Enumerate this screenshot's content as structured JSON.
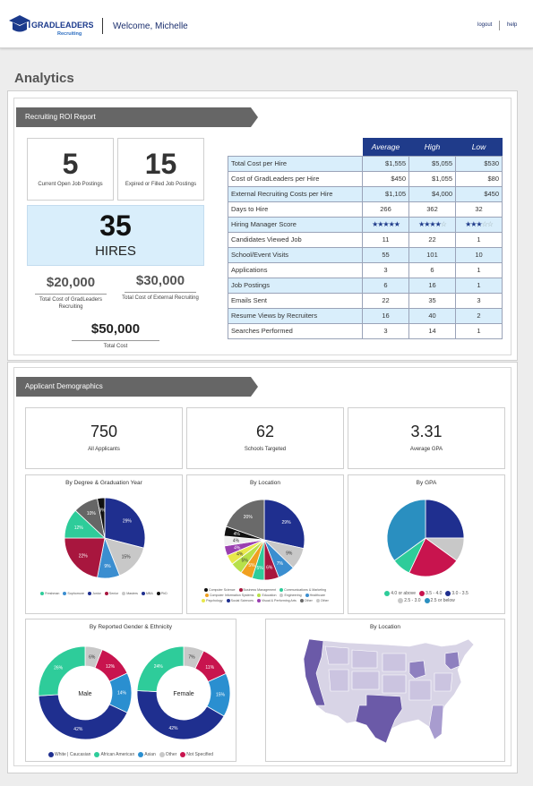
{
  "header": {
    "logo_text": "GRADLEADERS",
    "logo_sub": "Recruiting",
    "welcome": "Welcome, Michelle",
    "logout": "logout",
    "help": "help"
  },
  "page_title": "Analytics",
  "roi": {
    "section_title": "Recruiting ROI Report",
    "open_postings": {
      "value": "5",
      "label": "Current Open Job Postings"
    },
    "filled_postings": {
      "value": "15",
      "label": "Expired or Filled Job Postings"
    },
    "hires": {
      "value": "35",
      "label": "HIRES"
    },
    "gl_cost": {
      "value": "$20,000",
      "label": "Total Cost of GradLeaders Recruiting"
    },
    "ext_cost": {
      "value": "$30,000",
      "label": "Total Cost of External Recruiting"
    },
    "total_cost": {
      "value": "$50,000",
      "label": "Total Cost"
    },
    "table": {
      "headers": [
        "Average",
        "High",
        "Low"
      ],
      "rows": [
        {
          "label": "Total Cost per Hire",
          "values": [
            "$1,555",
            "$5,055",
            "$530"
          ],
          "style": "blue",
          "align": "r"
        },
        {
          "label": "Cost of GradLeaders per Hire",
          "values": [
            "$450",
            "$1,055",
            "$80"
          ],
          "style": "white",
          "align": "r"
        },
        {
          "label": "External Recruiting Costs per Hire",
          "values": [
            "$1,105",
            "$4,000",
            "$450"
          ],
          "style": "blue",
          "align": "r"
        },
        {
          "label": "Days to Hire",
          "values": [
            "266",
            "362",
            "32"
          ],
          "style": "white",
          "align": "c"
        },
        {
          "label": "Hiring Manager Score",
          "stars": [
            5,
            4,
            3
          ],
          "style": "blue"
        },
        {
          "label": "Candidates Viewed Job",
          "values": [
            "11",
            "22",
            "1"
          ],
          "style": "white",
          "align": "c"
        },
        {
          "label": "School/Event Visits",
          "values": [
            "55",
            "101",
            "10"
          ],
          "style": "blue",
          "align": "c"
        },
        {
          "label": "Applications",
          "values": [
            "3",
            "6",
            "1"
          ],
          "style": "white",
          "align": "c"
        },
        {
          "label": "Job Postings",
          "values": [
            "6",
            "16",
            "1"
          ],
          "style": "blue",
          "align": "c"
        },
        {
          "label": "Emails Sent",
          "values": [
            "22",
            "35",
            "3"
          ],
          "style": "white",
          "align": "c"
        },
        {
          "label": "Resume Views by Recruiters",
          "values": [
            "16",
            "40",
            "2"
          ],
          "style": "blue",
          "align": "c"
        },
        {
          "label": "Searches Performed",
          "values": [
            "3",
            "14",
            "1"
          ],
          "style": "white",
          "align": "c"
        }
      ]
    }
  },
  "demo": {
    "section_title": "Applicant Demographics",
    "stats": [
      {
        "value": "750",
        "label": "All Applicants"
      },
      {
        "value": "62",
        "label": "Schools Targeted"
      },
      {
        "value": "3.31",
        "label": "Average GPA"
      }
    ]
  },
  "colors": {
    "navy": "#1f3b8a",
    "teal": "#2ecc9a",
    "crimson": "#c0144e",
    "gray": "#c4c4c4",
    "dark": "#5a5a5a",
    "blue": "#3b8ed0",
    "orange": "#f0a020"
  },
  "chart_data": [
    {
      "type": "pie",
      "title": "By Degree & Graduation Year",
      "slices": [
        {
          "value": 29,
          "label": "29%",
          "color": "#1f2f8f"
        },
        {
          "value": 15,
          "label": "15%",
          "color": "#c8c8c8"
        },
        {
          "value": 9,
          "label": "9%",
          "color": "#3b8ed0"
        },
        {
          "value": 22,
          "label": "22%",
          "color": "#a8163e"
        },
        {
          "value": 12,
          "label": "12%",
          "color": "#2ecc9a"
        },
        {
          "value": 10,
          "label": "10%",
          "color": "#666666"
        },
        {
          "value": 3,
          "label": "3%",
          "color": "#111111"
        }
      ],
      "legend": [
        {
          "name": "Freshman",
          "color": "#2ecc9a"
        },
        {
          "name": "Sophomore",
          "color": "#3b8ed0"
        },
        {
          "name": "Junior",
          "color": "#1f2f8f"
        },
        {
          "name": "Senior",
          "color": "#a8163e"
        },
        {
          "name": "Masters",
          "color": "#c8c8c8"
        },
        {
          "name": "MBA",
          "color": "#1f2f8f"
        },
        {
          "name": "PhD",
          "color": "#111111"
        }
      ]
    },
    {
      "type": "pie",
      "title": "By Location",
      "slices": [
        {
          "value": 29,
          "label": "29%",
          "color": "#1f2f8f"
        },
        {
          "value": 9,
          "label": "9%",
          "color": "#c8c8c8"
        },
        {
          "value": 7,
          "label": "7%",
          "color": "#3b8ed0"
        },
        {
          "value": 6,
          "label": "6%",
          "color": "#a8163e"
        },
        {
          "value": 5,
          "label": "5%",
          "color": "#2ecc9a"
        },
        {
          "value": 5,
          "label": "5%",
          "color": "#f0a020"
        },
        {
          "value": 5,
          "label": "5%",
          "color": "#b7e04a"
        },
        {
          "value": 4,
          "label": "4%",
          "color": "#e8e84a"
        },
        {
          "value": 4,
          "label": "4%",
          "color": "#9a3fb0"
        },
        {
          "value": 4,
          "label": "4%",
          "color": "#f0f0f0"
        },
        {
          "value": 4,
          "label": "4%",
          "color": "#111111"
        },
        {
          "value": 20,
          "label": "20%",
          "color": "#6a6a6a"
        }
      ],
      "legend": [
        {
          "name": "Computer Science",
          "color": "#111111"
        },
        {
          "name": "Business Management",
          "color": "#a8163e"
        },
        {
          "name": "Communications & Marketing",
          "color": "#2ecc9a"
        },
        {
          "name": "Computer Information Systems",
          "color": "#f0a020"
        },
        {
          "name": "Education",
          "color": "#b7e04a"
        },
        {
          "name": "Engineering",
          "color": "#c8c8c8"
        },
        {
          "name": "Healthcare",
          "color": "#3b8ed0"
        },
        {
          "name": "Psychology",
          "color": "#e8e84a"
        },
        {
          "name": "Social Sciences",
          "color": "#1f2f8f"
        },
        {
          "name": "Visual & Performing Arts",
          "color": "#9a3fb0"
        },
        {
          "name": "Other",
          "color": "#6a6a6a"
        },
        {
          "name": "Other",
          "color": "#c8c8c8"
        }
      ]
    },
    {
      "type": "pie",
      "title": "By GPA",
      "slices": [
        {
          "value": 25,
          "color": "#1f2f8f"
        },
        {
          "value": 10,
          "color": "#c8c8c8"
        },
        {
          "value": 22,
          "color": "#c8144e"
        },
        {
          "value": 8,
          "color": "#2ecc9a"
        },
        {
          "value": 35,
          "color": "#2a8fc0"
        }
      ],
      "legend": [
        {
          "name": "4.0 or above",
          "color": "#2ecc9a"
        },
        {
          "name": "3.5 - 4.0",
          "color": "#c8144e"
        },
        {
          "name": "3.0 - 3.5",
          "color": "#1f2f8f"
        },
        {
          "name": "2.5 - 3.0",
          "color": "#c8c8c8"
        },
        {
          "name": "2.5 or below",
          "color": "#2a8fc0"
        }
      ]
    },
    {
      "type": "pie",
      "title": "By Reported Gender & Ethnicity",
      "donuts": [
        {
          "center_label": "Male",
          "slices": [
            {
              "value": 6,
              "label": "6%",
              "color": "#c8c8c8"
            },
            {
              "value": 12,
              "label": "12%",
              "color": "#c8144e"
            },
            {
              "value": 14,
              "label": "14%",
              "color": "#2a8fd0"
            },
            {
              "value": 42,
              "label": "42%",
              "color": "#1f2f8f"
            },
            {
              "value": 26,
              "label": "26%",
              "color": "#2ecc9a"
            }
          ]
        },
        {
          "center_label": "Female",
          "slices": [
            {
              "value": 7,
              "label": "7%",
              "color": "#c8c8c8"
            },
            {
              "value": 11,
              "label": "11%",
              "color": "#c8144e"
            },
            {
              "value": 15,
              "label": "15%",
              "color": "#2a8fd0"
            },
            {
              "value": 42,
              "label": "42%",
              "color": "#1f2f8f"
            },
            {
              "value": 24,
              "label": "24%",
              "color": "#2ecc9a"
            }
          ]
        }
      ],
      "legend": [
        {
          "name": "White | Caucasian",
          "color": "#1f2f8f"
        },
        {
          "name": "African American",
          "color": "#2ecc9a"
        },
        {
          "name": "Asian",
          "color": "#2a8fd0"
        },
        {
          "name": "Other",
          "color": "#c8c8c8"
        },
        {
          "name": "Not Specified",
          "color": "#c8144e"
        }
      ]
    }
  ],
  "map": {
    "title": "By Location"
  }
}
